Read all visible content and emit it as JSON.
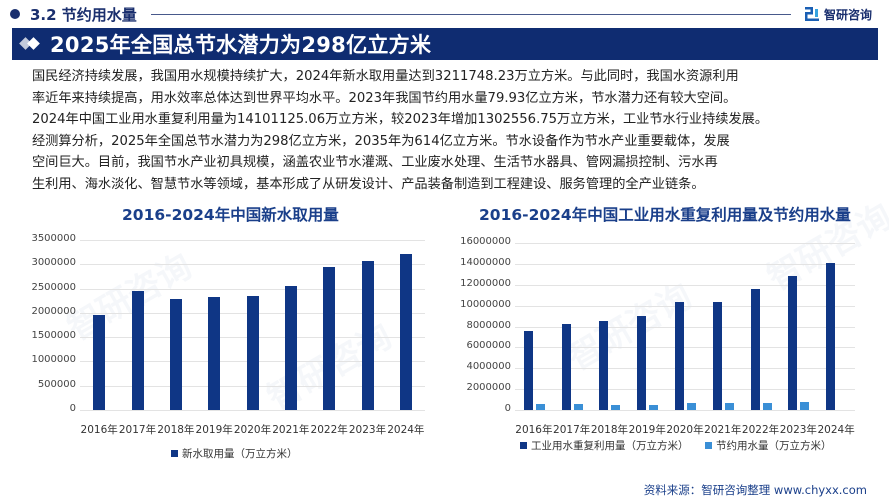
{
  "section": {
    "label": "3.2 节约用水量",
    "brand": "智研咨询"
  },
  "title": "2025年全国总节水潜力为298亿立方米",
  "paragraph_lines": [
    "国民经济持续发展，我国用水规模持续扩大，2024年新水取用量达到3211748.23万立方米。与此同时，我国水资源利用",
    "率近年来持续提高，用水效率总体达到世界平均水平。2023年我国节约用水量79.93亿立方米，节水潜力还有较大空间。",
    "2024年中国工业用水重复利用量为14101125.06万立方米，较2023年增加1302556.75万立方米，工业节水行业持续发展。",
    "经测算分析，2025年全国总节水潜力为298亿立方米，2035年为614亿立方米。节水设备作为节水产业重要载体，发展",
    "空间巨大。目前，我国节水产业初具规模，涵盖农业节水灌溉、工业废水处理、生活节水器具、管网漏损控制、污水再",
    "生利用、海水淡化、智慧节水等领域，基本形成了从研发设计、产品装备制造到工程建设、服务管理的全产业链条。"
  ],
  "source": "资料来源：智研咨询整理   www.chyxx.com",
  "colors": {
    "primary_navy": "#0f2c71",
    "bar_dark": "#0f3685",
    "bar_light": "#3a8fd6",
    "title_blue": "#1a3f8a"
  },
  "chart_data": [
    {
      "type": "bar",
      "title": "2016-2024年中国新水取用量",
      "categories": [
        "2016年",
        "2017年",
        "2018年",
        "2019年",
        "2020年",
        "2021年",
        "2022年",
        "2023年",
        "2024年"
      ],
      "series": [
        {
          "name": "新水取用量（万立方米）",
          "values": [
            1960000,
            2450000,
            2290000,
            2330000,
            2350000,
            2550000,
            2940000,
            3070000,
            3211748.23
          ]
        }
      ],
      "y_ticks": [
        "3500000",
        "3000000",
        "2500000",
        "2000000",
        "1500000",
        "1000000",
        "500000",
        "0"
      ],
      "ylim": [
        0,
        3500000
      ],
      "xlabel": "",
      "ylabel": "",
      "grid": true,
      "legend_position": "bottom"
    },
    {
      "type": "bar",
      "title": "2016-2024年中国工业用水重复利用量及节约用水量",
      "categories": [
        "2016年",
        "2017年",
        "2018年",
        "2019年",
        "2020年",
        "2021年",
        "2022年",
        "2023年",
        "2024年"
      ],
      "series": [
        {
          "name": "工业用水重复利用量（万立方米）",
          "values": [
            7600000,
            8200000,
            8500000,
            9000000,
            10300000,
            10300000,
            11600000,
            12798568.31,
            14101125.06
          ]
        },
        {
          "name": "节约用水量（万立方米）",
          "values": [
            560000,
            620000,
            460000,
            450000,
            660000,
            700000,
            650000,
            799300,
            null
          ]
        }
      ],
      "y_ticks": [
        "16000000",
        "14000000",
        "12000000",
        "10000000",
        "8000000",
        "6000000",
        "4000000",
        "2000000",
        "0"
      ],
      "ylim": [
        0,
        16000000
      ],
      "xlabel": "",
      "ylabel": "",
      "grid": true,
      "legend_position": "bottom"
    }
  ]
}
